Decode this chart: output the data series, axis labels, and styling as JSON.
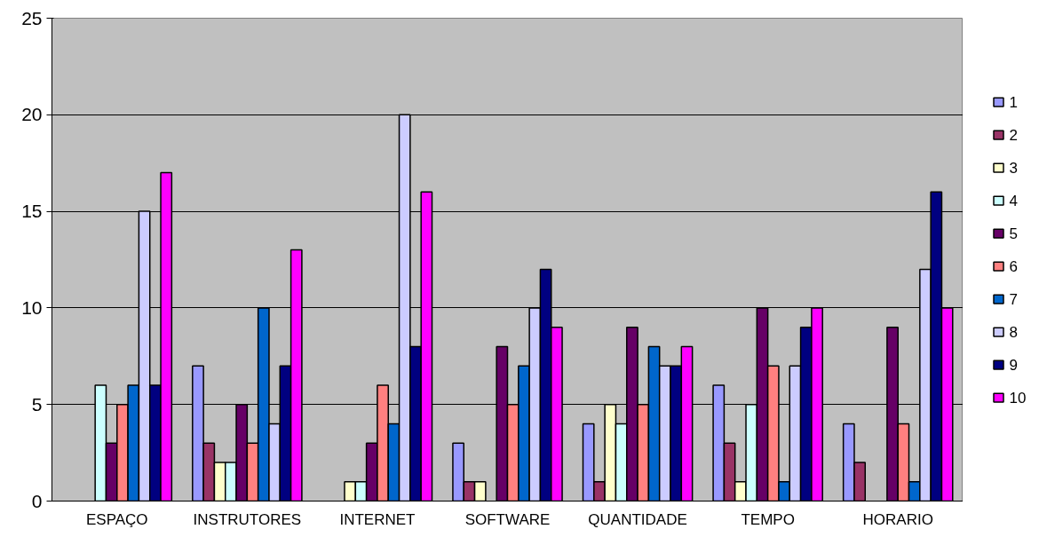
{
  "chart_data": {
    "type": "bar",
    "categories": [
      "ESPAÇO",
      "INSTRUTORES",
      "INTERNET",
      "SOFTWARE",
      "QUANTIDADE",
      "TEMPO",
      "HORARIO"
    ],
    "ylim": [
      0,
      25
    ],
    "yticks": [
      0,
      5,
      10,
      15,
      20,
      25
    ],
    "grid": "y",
    "legend": "right",
    "series": [
      {
        "name": "1",
        "color": "#9999ff",
        "values": [
          null,
          7,
          null,
          3,
          4,
          6,
          4
        ]
      },
      {
        "name": "2",
        "color": "#993366",
        "values": [
          null,
          3,
          null,
          1,
          1,
          3,
          2
        ]
      },
      {
        "name": "3",
        "color": "#ffffcc",
        "values": [
          null,
          2,
          1,
          1,
          5,
          1,
          null
        ]
      },
      {
        "name": "4",
        "color": "#ccffff",
        "values": [
          6,
          2,
          1,
          null,
          4,
          5,
          null
        ]
      },
      {
        "name": "5",
        "color": "#660066",
        "values": [
          3,
          5,
          3,
          8,
          9,
          10,
          9
        ]
      },
      {
        "name": "6",
        "color": "#ff8080",
        "values": [
          5,
          3,
          6,
          5,
          5,
          7,
          4
        ]
      },
      {
        "name": "7",
        "color": "#0066cc",
        "values": [
          6,
          10,
          4,
          7,
          8,
          1,
          1
        ]
      },
      {
        "name": "8",
        "color": "#ccccff",
        "values": [
          15,
          4,
          20,
          10,
          7,
          7,
          12
        ]
      },
      {
        "name": "9",
        "color": "#000080",
        "values": [
          6,
          7,
          8,
          12,
          7,
          9,
          16
        ]
      },
      {
        "name": "10",
        "color": "#ff00ff",
        "values": [
          17,
          13,
          16,
          9,
          8,
          10,
          10
        ]
      }
    ]
  }
}
